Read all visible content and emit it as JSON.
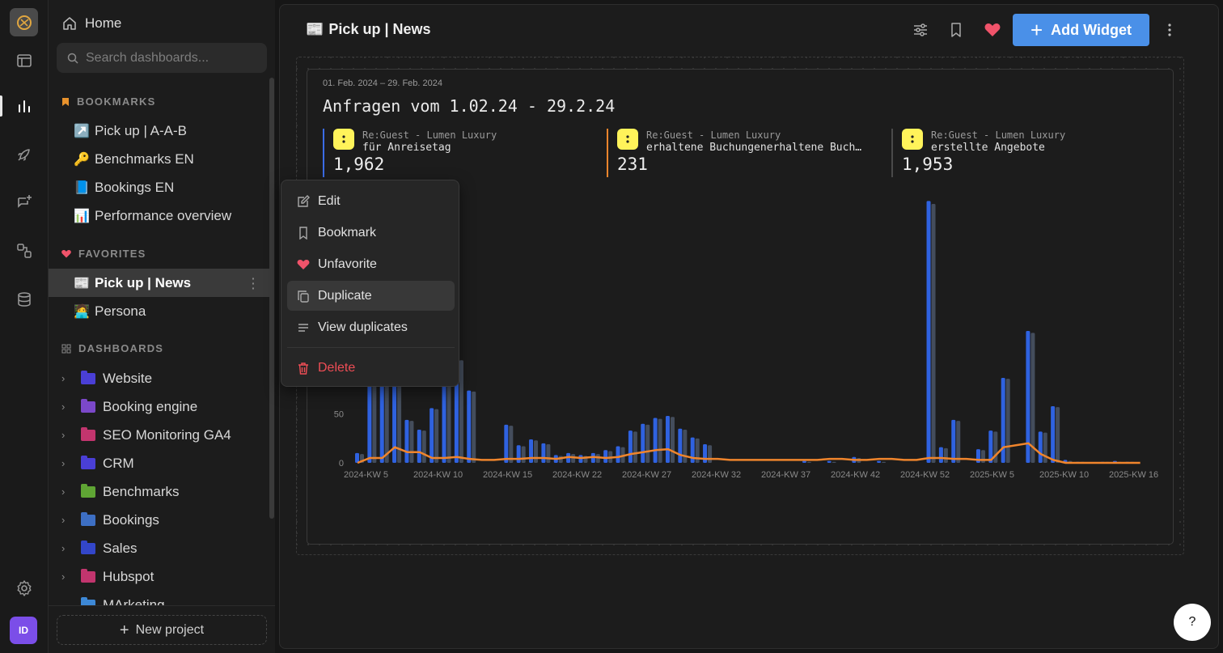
{
  "sidebar": {
    "home_label": "Home",
    "search_placeholder": "Search dashboards...",
    "bookmarks_heading": "BOOKMARKS",
    "bookmarks": [
      {
        "emoji": "↗️",
        "label": "Pick up | A-A-B"
      },
      {
        "emoji": "🔑",
        "label": "Benchmarks EN"
      },
      {
        "emoji": "📘",
        "label": "Bookings EN"
      },
      {
        "emoji": "📊",
        "label": "Performance overview"
      }
    ],
    "favorites_heading": "FAVORITES",
    "favorites": [
      {
        "emoji": "📰",
        "label": "Pick up | News"
      },
      {
        "emoji": "🧑‍💻",
        "label": "Persona"
      }
    ],
    "dashboards_heading": "DASHBOARDS",
    "folders": [
      {
        "label": "Website",
        "color": "#4a3fd6"
      },
      {
        "label": "Booking engine",
        "color": "#7b48c9"
      },
      {
        "label": "SEO Monitoring GA4",
        "color": "#c2356e"
      },
      {
        "label": "CRM",
        "color": "#4a3fd6"
      },
      {
        "label": "Benchmarks",
        "color": "#5fa534"
      },
      {
        "label": "Bookings",
        "color": "#3d6fc4"
      },
      {
        "label": "Sales",
        "color": "#3346c9"
      },
      {
        "label": "Hubspot",
        "color": "#c2356e"
      },
      {
        "label": "MArketing",
        "color": "#3d88d6"
      }
    ],
    "new_project_label": "New project"
  },
  "rail": {
    "avatar_initials": "ID"
  },
  "header": {
    "title_emoji": "📰",
    "title": "Pick up | News",
    "add_widget_label": "Add Widget",
    "accent": "#4a90e8",
    "favorite_color": "#f0536a"
  },
  "widget": {
    "date_range": "01. Feb. 2024 – 29. Feb. 2024",
    "title": "Anfragen vom 1.02.24 - 29.2.24",
    "kpis": [
      {
        "source": "Re:Guest - Lumen Luxury",
        "label": "für Anreisetag",
        "value": "1,962",
        "color": "#3b6ce6"
      },
      {
        "source": "Re:Guest - Lumen Luxury",
        "label": "erhaltene Buchungenerhaltene Buchungen",
        "value": "231",
        "color": "#f0852c"
      },
      {
        "source": "Re:Guest - Lumen Luxury",
        "label": "erstellte Angebote",
        "value": "1,953",
        "color": "#4a4a4a"
      }
    ]
  },
  "chart_data": {
    "type": "bar",
    "y_ticks": [
      "0",
      "50",
      "100"
    ],
    "x_tick_labels": [
      "2024-KW 5",
      "2024-KW 10",
      "2024-KW 15",
      "2024-KW 22",
      "2024-KW 27",
      "2024-KW 32",
      "2024-KW 37",
      "2024-KW 42",
      "2024-KW 52",
      "2025-KW 5",
      "2025-KW 10",
      "2025-KW 16"
    ],
    "series": [
      {
        "name": "für Anreisetag",
        "color": "#2f62e0",
        "values": [
          10,
          108,
          113,
          82,
          44,
          34,
          56,
          101,
          106,
          74,
          0,
          0,
          39,
          18,
          24,
          20,
          8,
          10,
          8,
          10,
          13,
          17,
          33,
          40,
          46,
          48,
          35,
          26,
          19,
          0,
          0,
          0,
          0,
          0,
          0,
          0,
          2,
          0,
          2,
          0,
          6,
          0,
          2,
          0,
          0,
          0,
          268,
          16,
          44,
          0,
          14,
          33,
          87,
          0,
          135,
          32,
          58,
          3,
          1,
          0,
          1,
          2,
          1,
          0
        ]
      },
      {
        "name": "erhaltene Buchungenerhaltene Buchungen",
        "type": "line",
        "color": "#f0852c",
        "values": [
          0,
          5,
          5,
          16,
          11,
          11,
          5,
          5,
          6,
          4,
          3,
          3,
          4,
          4,
          5,
          5,
          4,
          6,
          5,
          6,
          5,
          6,
          9,
          11,
          13,
          14,
          8,
          5,
          4,
          4,
          3,
          3,
          3,
          3,
          3,
          3,
          3,
          3,
          4,
          4,
          3,
          3,
          4,
          4,
          3,
          3,
          5,
          5,
          4,
          4,
          3,
          3,
          16,
          18,
          20,
          9,
          3,
          0,
          0,
          0,
          0,
          0,
          0,
          0
        ]
      },
      {
        "name": "erstellte Angebote",
        "color": "#444d5c",
        "values": [
          9,
          105,
          111,
          80,
          43,
          33,
          55,
          100,
          105,
          73,
          0,
          0,
          38,
          17,
          23,
          19,
          7,
          9,
          7,
          9,
          12,
          16,
          32,
          39,
          45,
          47,
          34,
          25,
          18,
          0,
          0,
          0,
          0,
          0,
          0,
          0,
          1,
          0,
          1,
          0,
          5,
          0,
          1,
          0,
          0,
          0,
          265,
          15,
          43,
          0,
          13,
          32,
          86,
          0,
          133,
          31,
          57,
          2,
          1,
          0,
          1,
          1,
          1,
          0
        ]
      }
    ],
    "ylim": [
      0,
      270
    ]
  },
  "context_menu": {
    "items": [
      {
        "label": "Edit",
        "icon": "edit-icon"
      },
      {
        "label": "Bookmark",
        "icon": "bookmark-icon"
      },
      {
        "label": "Unfavorite",
        "icon": "heart-icon"
      },
      {
        "label": "Duplicate",
        "icon": "duplicate-icon"
      },
      {
        "label": "View duplicates",
        "icon": "list-icon"
      }
    ],
    "delete_label": "Delete",
    "delete_color": "#ee4d55"
  },
  "help_label": "?"
}
